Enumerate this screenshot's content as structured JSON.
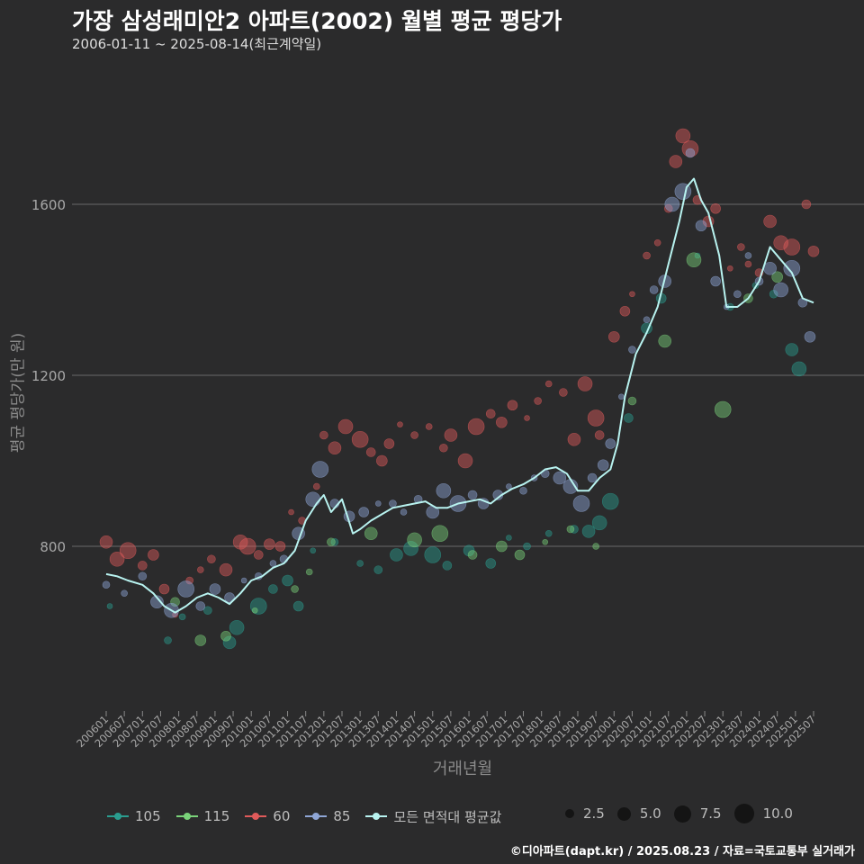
{
  "title": "가장 삼성래미안2 아파트(2002) 월별 평균 평당가",
  "subtitle": "2006-01-11 ~ 2025-08-14(최근계약일)",
  "footer": "©디아파트(dapt.kr) / 2025.08.23 / 자료=국토교통부 실거래가",
  "colors": {
    "background": "#2b2b2c",
    "grid": "#6a6a6a",
    "s105": "#2a9d8f",
    "s115": "#79d279",
    "s60": "#e05a5a",
    "s85": "#8fa6d6",
    "avg": "#b8f3f0"
  },
  "chart_data": {
    "type": "scatter",
    "title": "가장 삼성래미안2 아파트(2002) 월별 평균 평당가",
    "xlabel": "거래년월",
    "ylabel": "평균 평당가(만 원)",
    "y_ticks": [
      800,
      1200,
      1600
    ],
    "ylim": [
      420,
      1880
    ],
    "grid": true,
    "legend_position": "bottom",
    "x_ticks": [
      "200601",
      "200607",
      "200701",
      "200707",
      "200801",
      "200807",
      "200901",
      "200907",
      "201001",
      "201007",
      "201101",
      "201107",
      "201201",
      "201207",
      "201301",
      "201307",
      "201401",
      "201407",
      "201501",
      "201507",
      "201601",
      "201607",
      "201701",
      "201707",
      "201801",
      "201807",
      "201901",
      "201907",
      "202001",
      "202007",
      "202101",
      "202107",
      "202201",
      "202207",
      "202301",
      "202307",
      "202401",
      "202407",
      "202501",
      "202507"
    ],
    "series": [
      {
        "name": "105",
        "color": "#2a9d8f",
        "points": [
          [
            2006.1,
            660
          ],
          [
            2007.7,
            580
          ],
          [
            2008.1,
            635
          ],
          [
            2008.8,
            650
          ],
          [
            2009.4,
            575
          ],
          [
            2009.6,
            610
          ],
          [
            2010.2,
            660
          ],
          [
            2010.6,
            700
          ],
          [
            2011.0,
            720
          ],
          [
            2011.3,
            660
          ],
          [
            2011.7,
            790
          ],
          [
            2012.3,
            810
          ],
          [
            2013.0,
            760
          ],
          [
            2013.5,
            745
          ],
          [
            2014.0,
            780
          ],
          [
            2014.4,
            795
          ],
          [
            2015.0,
            780
          ],
          [
            2015.4,
            755
          ],
          [
            2016.0,
            790
          ],
          [
            2016.6,
            760
          ],
          [
            2017.1,
            820
          ],
          [
            2017.6,
            800
          ],
          [
            2018.2,
            830
          ],
          [
            2018.9,
            840
          ],
          [
            2019.3,
            835
          ],
          [
            2019.6,
            855
          ],
          [
            2019.9,
            905
          ],
          [
            2020.4,
            1100
          ],
          [
            2020.9,
            1310
          ],
          [
            2021.3,
            1380
          ],
          [
            2022.3,
            1480
          ],
          [
            2023.2,
            1360
          ],
          [
            2023.9,
            1410
          ],
          [
            2024.4,
            1390
          ],
          [
            2024.9,
            1260
          ],
          [
            2025.1,
            1215
          ]
        ]
      },
      {
        "name": "115",
        "color": "#79d279",
        "points": [
          [
            2007.9,
            670
          ],
          [
            2008.6,
            580
          ],
          [
            2009.3,
            590
          ],
          [
            2010.1,
            650
          ],
          [
            2011.2,
            700
          ],
          [
            2011.6,
            740
          ],
          [
            2012.2,
            810
          ],
          [
            2013.3,
            830
          ],
          [
            2014.5,
            815
          ],
          [
            2015.2,
            830
          ],
          [
            2016.1,
            780
          ],
          [
            2016.9,
            800
          ],
          [
            2017.4,
            780
          ],
          [
            2018.1,
            810
          ],
          [
            2018.8,
            840
          ],
          [
            2019.5,
            800
          ],
          [
            2020.5,
            1140
          ],
          [
            2021.4,
            1280
          ],
          [
            2022.2,
            1470
          ],
          [
            2023.0,
            1120
          ],
          [
            2023.7,
            1380
          ],
          [
            2024.5,
            1430
          ]
        ]
      },
      {
        "name": "60",
        "color": "#e05a5a",
        "points": [
          [
            2006.0,
            810
          ],
          [
            2006.3,
            770
          ],
          [
            2006.6,
            790
          ],
          [
            2007.0,
            755
          ],
          [
            2007.3,
            780
          ],
          [
            2007.6,
            700
          ],
          [
            2007.9,
            640
          ],
          [
            2008.3,
            720
          ],
          [
            2008.6,
            745
          ],
          [
            2008.9,
            770
          ],
          [
            2009.3,
            745
          ],
          [
            2009.7,
            810
          ],
          [
            2009.9,
            800
          ],
          [
            2010.2,
            780
          ],
          [
            2010.5,
            805
          ],
          [
            2010.8,
            800
          ],
          [
            2011.1,
            880
          ],
          [
            2011.4,
            860
          ],
          [
            2011.8,
            940
          ],
          [
            2012.0,
            1060
          ],
          [
            2012.3,
            1030
          ],
          [
            2012.6,
            1080
          ],
          [
            2013.0,
            1050
          ],
          [
            2013.3,
            1020
          ],
          [
            2013.6,
            1000
          ],
          [
            2013.8,
            1040
          ],
          [
            2014.1,
            1085
          ],
          [
            2014.5,
            1060
          ],
          [
            2014.9,
            1080
          ],
          [
            2015.3,
            1030
          ],
          [
            2015.5,
            1060
          ],
          [
            2015.9,
            1000
          ],
          [
            2016.2,
            1080
          ],
          [
            2016.6,
            1110
          ],
          [
            2016.9,
            1090
          ],
          [
            2017.2,
            1130
          ],
          [
            2017.6,
            1100
          ],
          [
            2017.9,
            1140
          ],
          [
            2018.2,
            1180
          ],
          [
            2018.6,
            1160
          ],
          [
            2018.9,
            1050
          ],
          [
            2019.2,
            1180
          ],
          [
            2019.5,
            1100
          ],
          [
            2019.6,
            1060
          ],
          [
            2020.0,
            1290
          ],
          [
            2020.3,
            1350
          ],
          [
            2020.5,
            1390
          ],
          [
            2020.9,
            1480
          ],
          [
            2021.2,
            1510
          ],
          [
            2021.5,
            1590
          ],
          [
            2021.7,
            1700
          ],
          [
            2021.9,
            1760
          ],
          [
            2022.1,
            1730
          ],
          [
            2022.3,
            1610
          ],
          [
            2022.6,
            1560
          ],
          [
            2022.8,
            1590
          ],
          [
            2023.2,
            1450
          ],
          [
            2023.5,
            1500
          ],
          [
            2023.7,
            1460
          ],
          [
            2024.0,
            1440
          ],
          [
            2024.3,
            1560
          ],
          [
            2024.6,
            1510
          ],
          [
            2024.9,
            1500
          ],
          [
            2025.3,
            1600
          ],
          [
            2025.5,
            1490
          ]
        ]
      },
      {
        "name": "85",
        "color": "#8fa6d6",
        "points": [
          [
            2006.0,
            710
          ],
          [
            2006.5,
            690
          ],
          [
            2007.0,
            730
          ],
          [
            2007.4,
            670
          ],
          [
            2007.8,
            650
          ],
          [
            2008.2,
            700
          ],
          [
            2008.6,
            660
          ],
          [
            2009.0,
            700
          ],
          [
            2009.4,
            680
          ],
          [
            2009.8,
            720
          ],
          [
            2010.2,
            730
          ],
          [
            2010.6,
            760
          ],
          [
            2010.9,
            770
          ],
          [
            2011.3,
            830
          ],
          [
            2011.7,
            910
          ],
          [
            2011.9,
            980
          ],
          [
            2012.3,
            900
          ],
          [
            2012.7,
            870
          ],
          [
            2013.1,
            880
          ],
          [
            2013.5,
            900
          ],
          [
            2013.9,
            900
          ],
          [
            2014.2,
            880
          ],
          [
            2014.6,
            910
          ],
          [
            2015.0,
            880
          ],
          [
            2015.3,
            930
          ],
          [
            2015.7,
            900
          ],
          [
            2016.1,
            920
          ],
          [
            2016.4,
            900
          ],
          [
            2016.8,
            920
          ],
          [
            2017.1,
            940
          ],
          [
            2017.5,
            930
          ],
          [
            2017.8,
            960
          ],
          [
            2018.1,
            970
          ],
          [
            2018.5,
            960
          ],
          [
            2018.8,
            940
          ],
          [
            2019.1,
            900
          ],
          [
            2019.4,
            960
          ],
          [
            2019.7,
            990
          ],
          [
            2019.9,
            1040
          ],
          [
            2020.2,
            1150
          ],
          [
            2020.5,
            1260
          ],
          [
            2020.9,
            1330
          ],
          [
            2021.1,
            1400
          ],
          [
            2021.4,
            1420
          ],
          [
            2021.6,
            1600
          ],
          [
            2021.9,
            1630
          ],
          [
            2022.1,
            1720
          ],
          [
            2022.4,
            1550
          ],
          [
            2022.8,
            1420
          ],
          [
            2023.1,
            1360
          ],
          [
            2023.4,
            1390
          ],
          [
            2023.7,
            1480
          ],
          [
            2024.0,
            1420
          ],
          [
            2024.3,
            1450
          ],
          [
            2024.6,
            1400
          ],
          [
            2024.9,
            1450
          ],
          [
            2025.2,
            1370
          ],
          [
            2025.4,
            1290
          ]
        ]
      }
    ],
    "average": {
      "name": "모든 면적대 평균값",
      "color": "#b8f3f0",
      "points": [
        [
          2006.0,
          735
        ],
        [
          2006.3,
          730
        ],
        [
          2006.6,
          720
        ],
        [
          2007.0,
          710
        ],
        [
          2007.3,
          690
        ],
        [
          2007.6,
          660
        ],
        [
          2007.9,
          645
        ],
        [
          2008.2,
          660
        ],
        [
          2008.5,
          680
        ],
        [
          2008.8,
          690
        ],
        [
          2009.1,
          680
        ],
        [
          2009.4,
          665
        ],
        [
          2009.7,
          690
        ],
        [
          2010.0,
          720
        ],
        [
          2010.3,
          730
        ],
        [
          2010.6,
          750
        ],
        [
          2010.9,
          760
        ],
        [
          2011.2,
          790
        ],
        [
          2011.5,
          860
        ],
        [
          2011.8,
          900
        ],
        [
          2012.0,
          920
        ],
        [
          2012.2,
          880
        ],
        [
          2012.5,
          910
        ],
        [
          2012.8,
          830
        ],
        [
          2013.0,
          840
        ],
        [
          2013.3,
          860
        ],
        [
          2013.6,
          875
        ],
        [
          2013.9,
          890
        ],
        [
          2014.2,
          895
        ],
        [
          2014.5,
          900
        ],
        [
          2014.8,
          905
        ],
        [
          2015.1,
          890
        ],
        [
          2015.4,
          890
        ],
        [
          2015.7,
          900
        ],
        [
          2016.0,
          905
        ],
        [
          2016.3,
          910
        ],
        [
          2016.6,
          900
        ],
        [
          2016.9,
          920
        ],
        [
          2017.2,
          935
        ],
        [
          2017.5,
          945
        ],
        [
          2017.8,
          960
        ],
        [
          2018.1,
          980
        ],
        [
          2018.4,
          985
        ],
        [
          2018.7,
          970
        ],
        [
          2019.0,
          930
        ],
        [
          2019.3,
          930
        ],
        [
          2019.6,
          960
        ],
        [
          2019.9,
          980
        ],
        [
          2020.1,
          1040
        ],
        [
          2020.3,
          1150
        ],
        [
          2020.6,
          1250
        ],
        [
          2020.9,
          1300
        ],
        [
          2021.2,
          1360
        ],
        [
          2021.5,
          1460
        ],
        [
          2021.8,
          1560
        ],
        [
          2022.0,
          1640
        ],
        [
          2022.2,
          1660
        ],
        [
          2022.4,
          1610
        ],
        [
          2022.6,
          1580
        ],
        [
          2022.9,
          1480
        ],
        [
          2023.1,
          1360
        ],
        [
          2023.4,
          1360
        ],
        [
          2023.7,
          1380
        ],
        [
          2024.0,
          1420
        ],
        [
          2024.3,
          1500
        ],
        [
          2024.6,
          1470
        ],
        [
          2024.9,
          1440
        ],
        [
          2025.2,
          1380
        ],
        [
          2025.5,
          1370
        ]
      ]
    },
    "size_legend": [
      {
        "label": "2.5",
        "value": 2.5
      },
      {
        "label": "5.0",
        "value": 5.0
      },
      {
        "label": "7.5",
        "value": 7.5
      },
      {
        "label": "10.0",
        "value": 10.0
      }
    ]
  }
}
